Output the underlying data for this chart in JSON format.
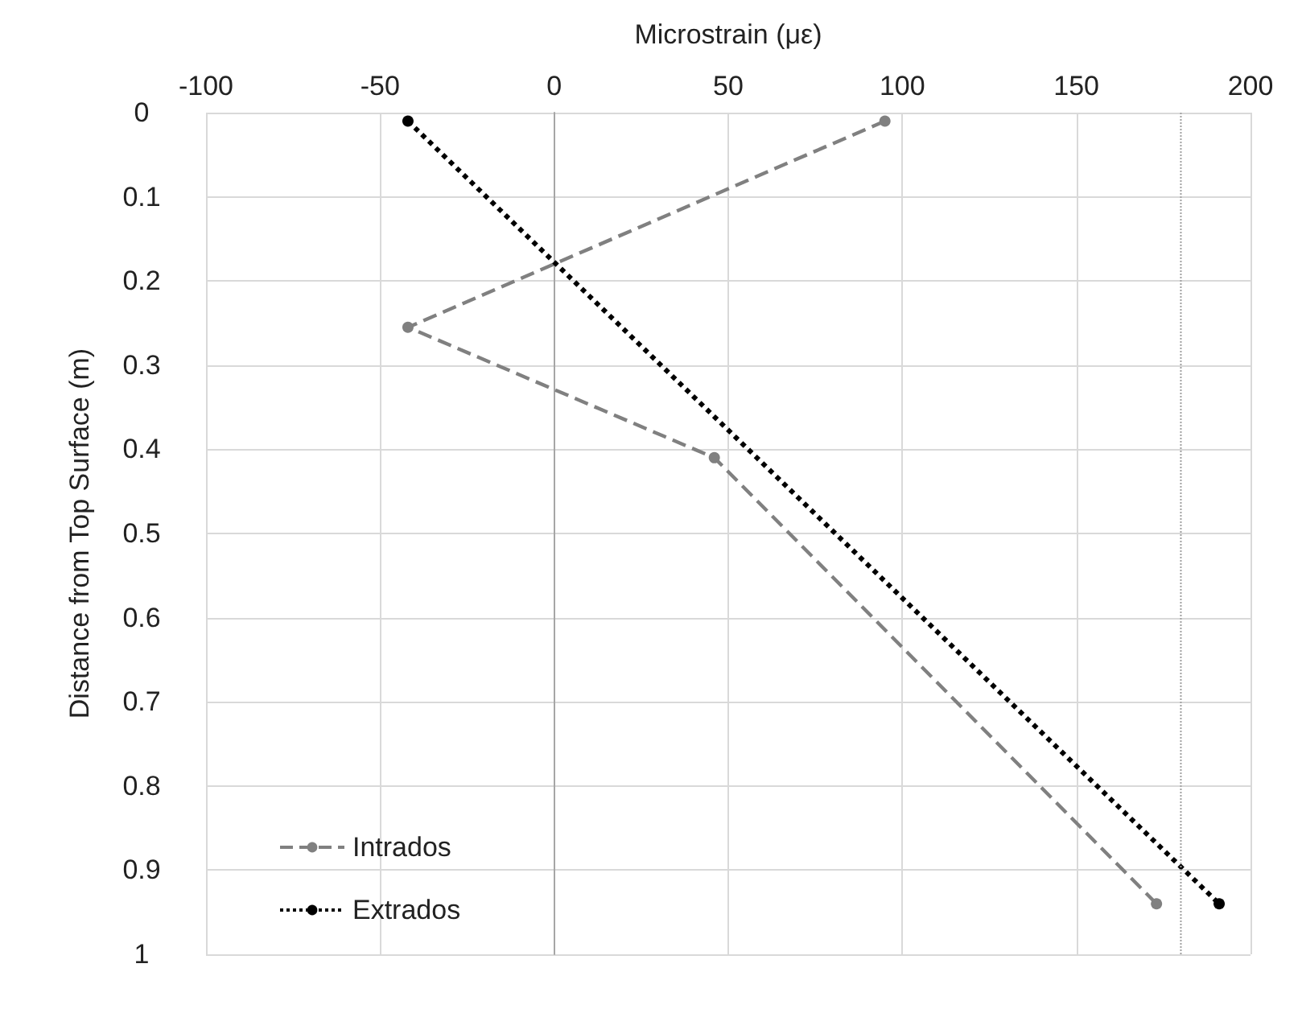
{
  "chart_data": {
    "type": "line",
    "xlabel": "Microstrain (με)",
    "ylabel": "Distance from Top Surface (m)",
    "xlim": [
      -100,
      200
    ],
    "xticks": [
      -100,
      -50,
      0,
      50,
      100,
      150,
      200
    ],
    "ylim": [
      1,
      0
    ],
    "yticks": [
      0,
      0.1,
      0.2,
      0.3,
      0.4,
      0.5,
      0.6,
      0.7,
      0.8,
      0.9,
      1
    ],
    "series": [
      {
        "name": "Intrados",
        "color": "#808080",
        "line_style": "dashed",
        "x": [
          95,
          -42,
          46,
          173
        ],
        "values": [
          0.01,
          0.255,
          0.41,
          0.94
        ]
      },
      {
        "name": "Extrados",
        "color": "#000000",
        "line_style": "dotted",
        "x": [
          -42,
          191
        ],
        "values": [
          0.01,
          0.94
        ]
      }
    ],
    "ref_lines": [
      {
        "axis": "x",
        "value": 180,
        "color": "#a0a0a0",
        "line_style": "dotted"
      }
    ],
    "grid": true,
    "legend": "bottom left",
    "marker": "circle"
  }
}
